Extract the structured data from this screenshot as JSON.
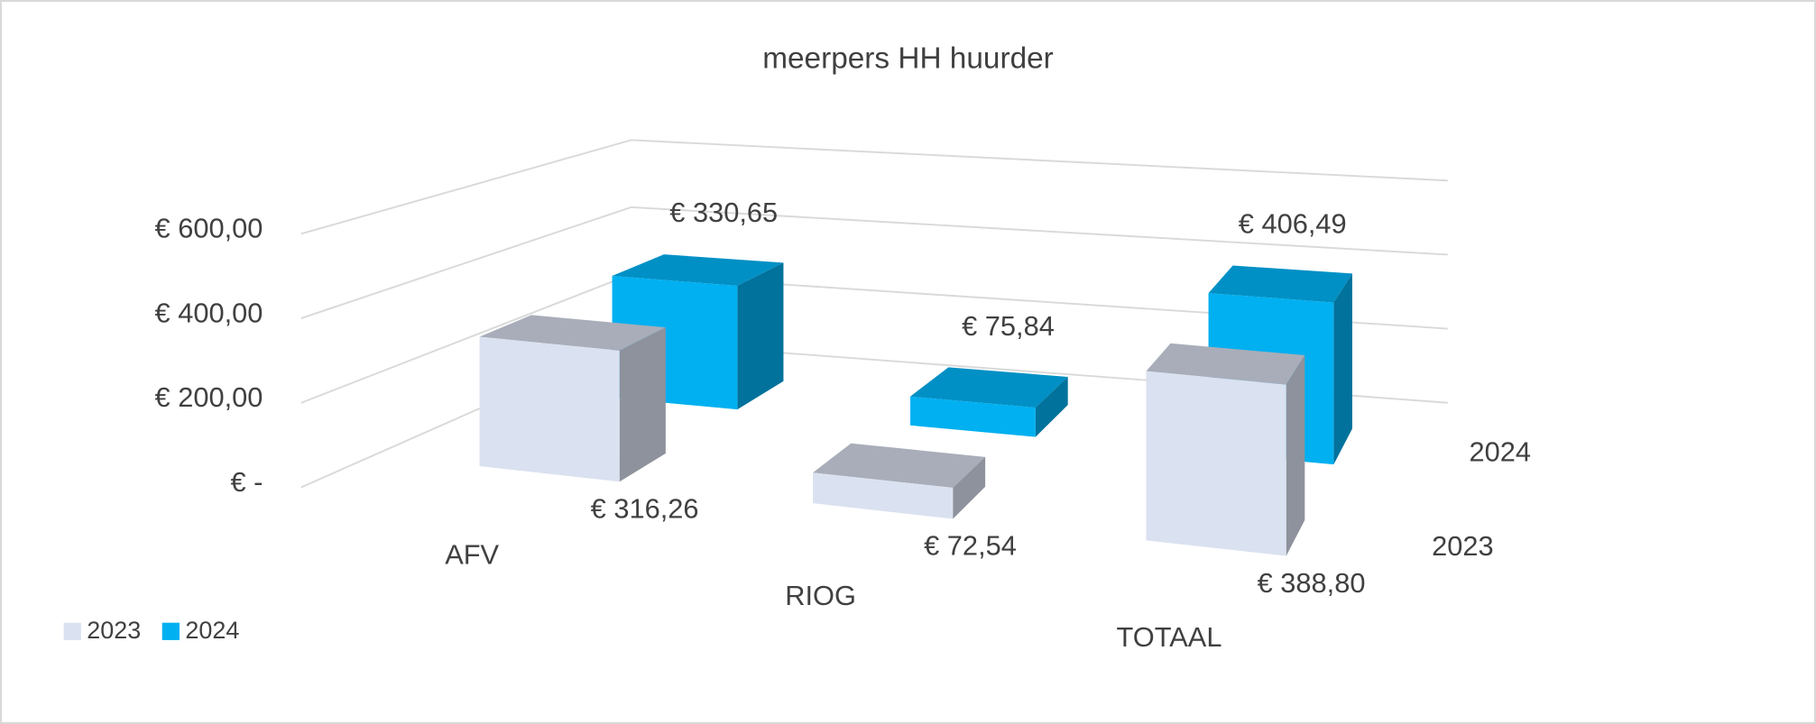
{
  "chart_data": {
    "type": "bar3d",
    "title": "meerpers HH huurder",
    "categories": [
      "AFV",
      "RIOG",
      "TOTAAL"
    ],
    "series": [
      {
        "name": "2023",
        "color": "#dae1f0",
        "values": [
          316.26,
          72.54,
          388.8
        ],
        "value_labels": [
          "€ 316,26",
          "€ 72,54",
          "€ 388,80"
        ]
      },
      {
        "name": "2024",
        "color": "#00b0f0",
        "values": [
          330.65,
          75.84,
          406.49
        ],
        "value_labels": [
          "€ 330,65",
          "€ 75,84",
          "€ 406,49"
        ]
      }
    ],
    "ylim": [
      0,
      600
    ],
    "yticks": [
      {
        "value": 0,
        "label": "€ -"
      },
      {
        "value": 200,
        "label": "€ 200,00"
      },
      {
        "value": 400,
        "label": "€ 400,00"
      },
      {
        "value": 600,
        "label": "€ 600,00"
      }
    ],
    "grid": true,
    "legend": "bottom-left"
  }
}
